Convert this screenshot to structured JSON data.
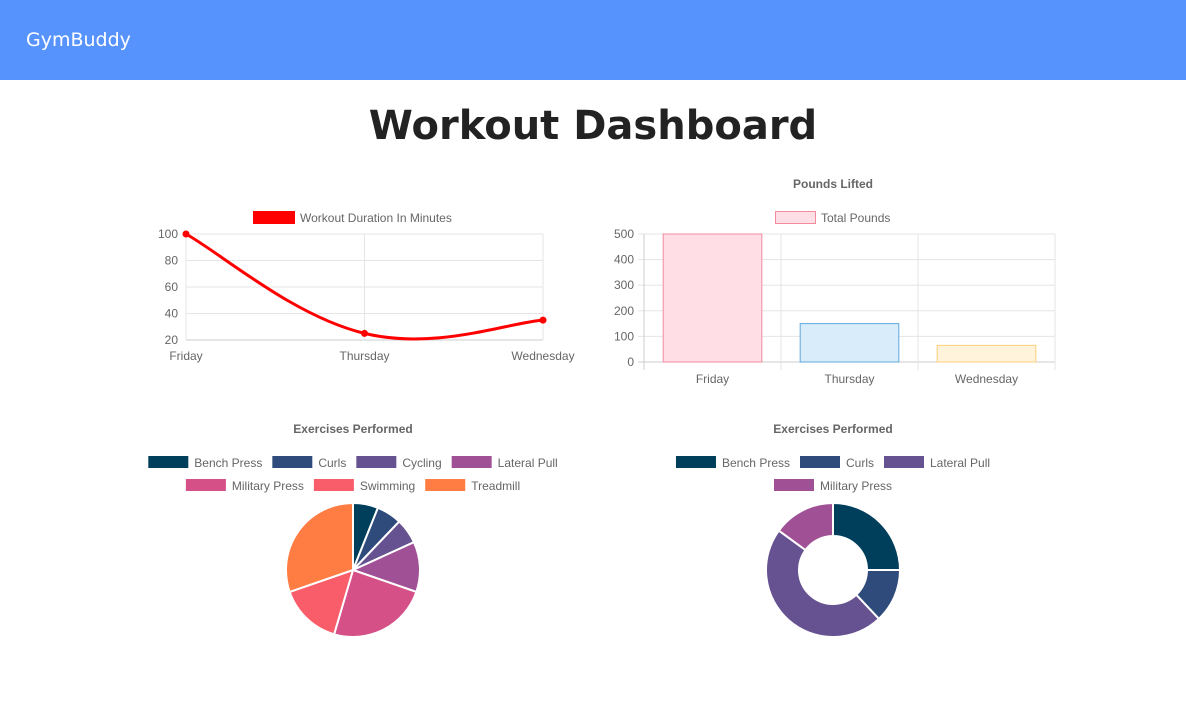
{
  "app": {
    "brand": "GymBuddy",
    "page_title": "Workout Dashboard"
  },
  "chart_data": [
    {
      "type": "line",
      "categories": [
        "Friday",
        "Thursday",
        "Wednesday"
      ],
      "series": [
        {
          "name": "Workout Duration In Minutes",
          "values": [
            100,
            25,
            35
          ],
          "color": "#ff0000"
        }
      ],
      "title": "",
      "xlabel": "",
      "ylabel": "",
      "ylim": [
        20,
        100
      ],
      "yticks": [
        20,
        40,
        60,
        80,
        100
      ],
      "grid": true,
      "legend": "top"
    },
    {
      "type": "bar",
      "title": "Pounds Lifted",
      "categories": [
        "Friday",
        "Thursday",
        "Wednesday"
      ],
      "series": [
        {
          "name": "Total Pounds",
          "values": [
            500,
            150,
            65
          ]
        }
      ],
      "bar_colors": [
        {
          "fill": "#ffdfe5",
          "stroke": "#f28aa0"
        },
        {
          "fill": "#d9ecfa",
          "stroke": "#5fa9e0"
        },
        {
          "fill": "#fff3dc",
          "stroke": "#ffd07a"
        }
      ],
      "xlabel": "",
      "ylabel": "",
      "ylim": [
        0,
        500
      ],
      "yticks": [
        0,
        100,
        200,
        300,
        400,
        500
      ],
      "grid": true,
      "legend": "top"
    },
    {
      "type": "pie",
      "title": "Exercises Performed",
      "labels": [
        "Bench Press",
        "Curls",
        "Cycling",
        "Lateral Pull",
        "Military Press",
        "Swimming",
        "Treadmill"
      ],
      "values": [
        6,
        6,
        6,
        12,
        24,
        15,
        30
      ],
      "colors": [
        "#003f5c",
        "#2f4b7c",
        "#665191",
        "#a05195",
        "#d45087",
        "#f95d6a",
        "#ff7c43"
      ],
      "legend": "top"
    },
    {
      "type": "doughnut",
      "title": "Exercises Performed",
      "labels": [
        "Bench Press",
        "Curls",
        "Lateral Pull",
        "Military Press"
      ],
      "values": [
        25,
        13,
        47,
        15
      ],
      "colors": [
        "#003f5c",
        "#2f4b7c",
        "#665191",
        "#a05195"
      ],
      "legend": "top"
    }
  ]
}
